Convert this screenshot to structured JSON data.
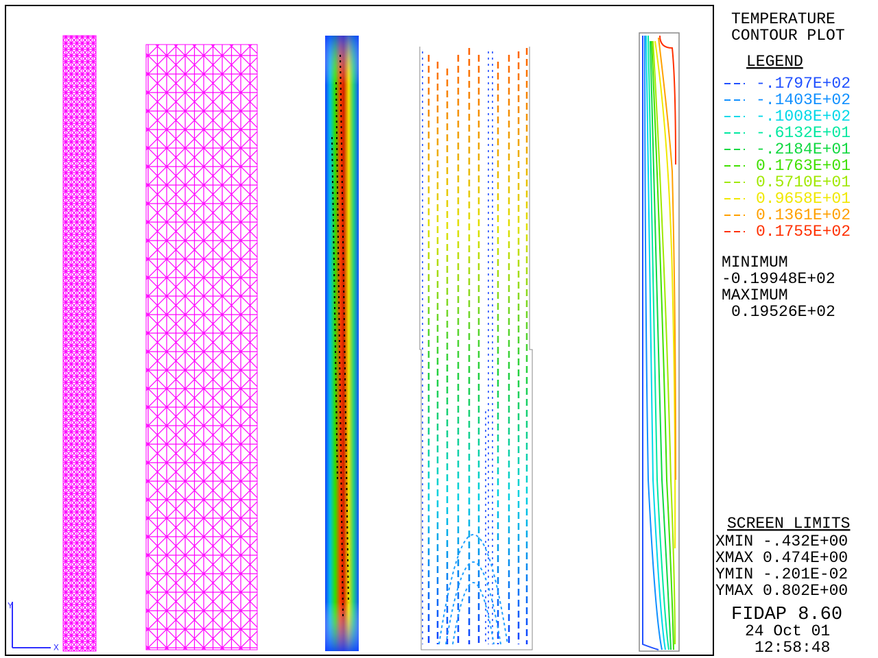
{
  "header": {
    "title_lines": [
      "TEMPERATURE",
      "CONTOUR PLOT"
    ]
  },
  "legend": {
    "heading": "LEGEND",
    "entries": [
      {
        "label": "-.1797E+02",
        "color": "#2050ff"
      },
      {
        "label": "-.1403E+02",
        "color": "#1090ff"
      },
      {
        "label": "-.1008E+02",
        "color": "#00d8e8"
      },
      {
        "label": "-.6132E+01",
        "color": "#00e8a0"
      },
      {
        "label": "-.2184E+01",
        "color": "#10d840"
      },
      {
        "label": "0.1763E+01",
        "color": "#40e000"
      },
      {
        "label": "0.5710E+01",
        "color": "#a0e800"
      },
      {
        "label": "0.9658E+01",
        "color": "#f0e800"
      },
      {
        "label": "0.1361E+02",
        "color": "#ffa000"
      },
      {
        "label": "0.1755E+02",
        "color": "#ff3000"
      }
    ]
  },
  "extremes": {
    "minimum_label": "MINIMUM",
    "minimum": "-0.19948E+02",
    "maximum_label": "MAXIMUM",
    "maximum": "0.19526E+02"
  },
  "screen_limits": {
    "heading": "SCREEN LIMITS",
    "rows": [
      "XMIN -.432E+00",
      "XMAX 0.474E+00",
      "YMIN -.201E-02",
      "YMAX 0.802E+00"
    ]
  },
  "footer": {
    "program": "FIDAP 8.60",
    "date": "24 Oct 01",
    "time": "12:58:48"
  },
  "axes": {
    "y": "Y",
    "x": "X"
  }
}
